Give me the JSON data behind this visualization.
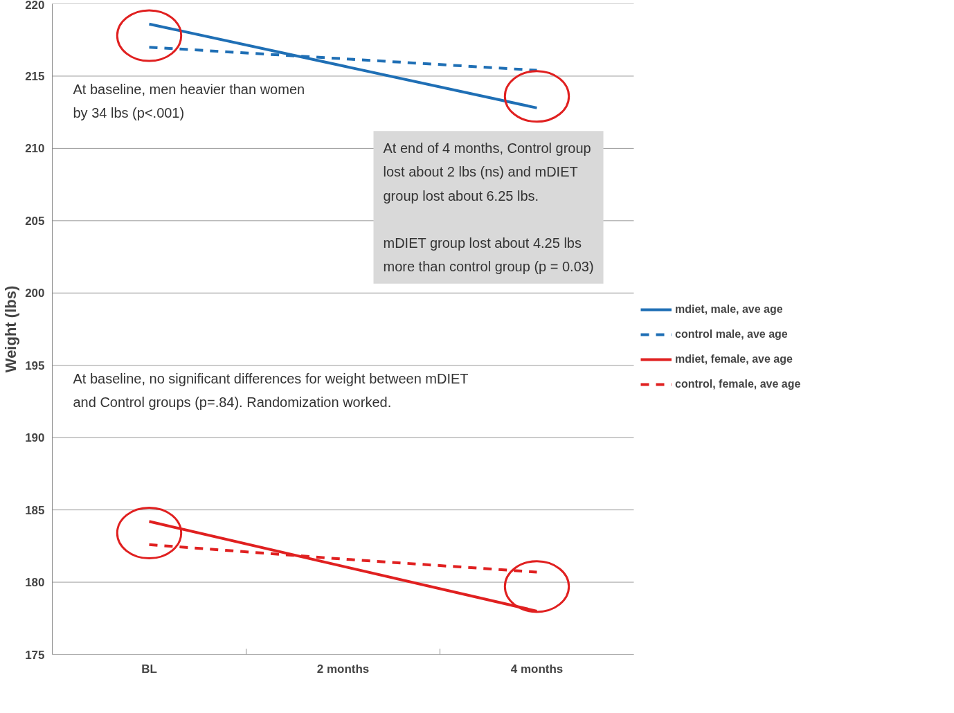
{
  "chart_data": {
    "type": "line",
    "ylabel": "Weight (lbs)",
    "categories": [
      "BL",
      "2 months",
      "4 months"
    ],
    "series": [
      {
        "name": "mdiet, male, ave age",
        "color": "#1f6fb5",
        "values": [
          218.6,
          215.7,
          212.8
        ],
        "line_style": "solid"
      },
      {
        "name": "control male, ave age",
        "color": "#1f6fb5",
        "values": [
          217.0,
          216.2,
          215.4
        ],
        "line_style": "dashed"
      },
      {
        "name": "mdiet, female, ave age",
        "color": "#e02020",
        "values": [
          184.2,
          181.1,
          178.0
        ],
        "line_style": "solid"
      },
      {
        "name": "control, female, ave age",
        "color": "#e02020",
        "values": [
          182.6,
          181.6,
          180.7
        ],
        "line_style": "dashed"
      }
    ],
    "ylim": [
      175,
      220
    ],
    "yticks": [
      175,
      180,
      185,
      190,
      195,
      200,
      205,
      210,
      215,
      220
    ],
    "grid": "y",
    "legend": "right",
    "marker": "none",
    "annotations": [
      "At baseline, men heavier than women\nby 34 lbs (p<.001)",
      "At end of 4 months, Control group\nlost about 2 lbs (ns) and mDIET\ngroup lost about 6.25 lbs.\n\nmDIET group lost about 4.25 lbs\nmore than control group (p = 0.03)",
      "At baseline, no significant differences  for weight between mDIET\nand Control groups (p=.84). Randomization worked."
    ]
  }
}
